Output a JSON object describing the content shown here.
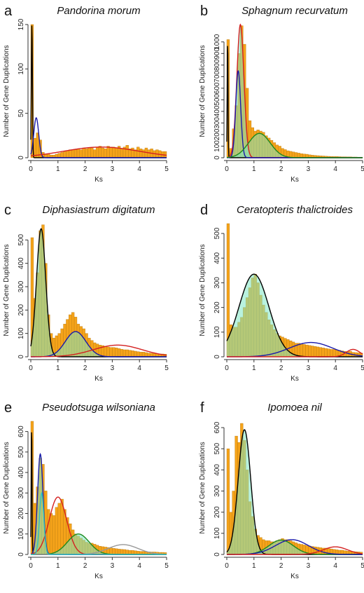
{
  "chart_data": [
    {
      "panel": "a",
      "title": "Pandorina morum",
      "type": "bar",
      "xlabel": "Ks",
      "ylabel": "Number of Gene Duplications",
      "xlim": [
        0,
        5
      ],
      "ylim": [
        0,
        150
      ],
      "x_ticks": [
        0,
        1,
        2,
        3,
        4,
        5
      ],
      "y_ticks": [
        0,
        50,
        100,
        150
      ],
      "bin_width": 0.1,
      "values": [
        150,
        22,
        28,
        20,
        6,
        4,
        4,
        3,
        3,
        4,
        5,
        6,
        7,
        8,
        9,
        9,
        9,
        10,
        9,
        11,
        10,
        11,
        11,
        9,
        12,
        13,
        11,
        10,
        13,
        12,
        12,
        11,
        13,
        10,
        12,
        14,
        10,
        11,
        9,
        12,
        10,
        9,
        11,
        9,
        10,
        8,
        9,
        8,
        7,
        7
      ],
      "curves": [
        {
          "color": "#000000",
          "mu": 0.04,
          "sigma": 0.02,
          "amp": 150
        },
        {
          "color": "#1a1aaa",
          "mu": 0.2,
          "sigma": 0.09,
          "amp": 45
        },
        {
          "color": "#d42020",
          "mu": 2.6,
          "sigma": 1.4,
          "amp": 12
        }
      ],
      "fills": []
    },
    {
      "panel": "b",
      "title": "Sphagnum recurvatum",
      "type": "bar",
      "xlabel": "Ks",
      "ylabel": "Number of Gene Duplications",
      "xlim": [
        0,
        5
      ],
      "ylim": [
        0,
        1150
      ],
      "x_ticks": [
        0,
        1,
        2,
        3,
        4,
        5
      ],
      "y_ticks": [
        0,
        100,
        200,
        300,
        400,
        500,
        600,
        700,
        800,
        900,
        1000
      ],
      "bin_width": 0.1,
      "values": [
        1020,
        80,
        250,
        450,
        900,
        1140,
        980,
        600,
        320,
        260,
        230,
        240,
        230,
        220,
        190,
        170,
        150,
        130,
        110,
        100,
        80,
        70,
        60,
        55,
        50,
        45,
        40,
        35,
        32,
        30,
        25,
        22,
        20,
        18,
        16,
        15,
        13,
        12,
        11,
        10,
        10,
        9,
        8,
        8,
        7,
        7,
        6,
        6,
        5,
        5
      ],
      "curves": [
        {
          "color": "#000000",
          "mu": 0.03,
          "sigma": 0.015,
          "amp": 1020
        },
        {
          "color": "#d42020",
          "mu": 0.5,
          "sigma": 0.13,
          "amp": 1150
        },
        {
          "color": "#1a1aaa",
          "mu": 0.42,
          "sigma": 0.09,
          "amp": 750
        },
        {
          "color": "#1e8a1e",
          "mu": 1.2,
          "sigma": 0.4,
          "amp": 210
        }
      ],
      "fills": [
        {
          "color": "#7fe8c4",
          "mu": 0.5,
          "sigma": 0.13,
          "amp": 1150
        },
        {
          "color": "#7fe8c4",
          "mu": 1.2,
          "sigma": 0.4,
          "amp": 210
        }
      ]
    },
    {
      "panel": "c",
      "title": "Diphasiastrum digitatum",
      "type": "bar",
      "xlabel": "Ks",
      "ylabel": "Number of Gene Duplications",
      "xlim": [
        0,
        5
      ],
      "ylim": [
        0,
        570
      ],
      "x_ticks": [
        0,
        1,
        2,
        3,
        4,
        5
      ],
      "y_ticks": [
        0,
        100,
        200,
        300,
        400,
        500
      ],
      "bin_width": 0.1,
      "values": [
        510,
        250,
        360,
        540,
        565,
        400,
        180,
        100,
        80,
        90,
        100,
        120,
        140,
        160,
        180,
        190,
        170,
        140,
        130,
        120,
        100,
        80,
        70,
        60,
        55,
        50,
        48,
        45,
        42,
        40,
        40,
        38,
        35,
        32,
        30,
        30,
        28,
        26,
        24,
        22,
        20,
        20,
        18,
        16,
        15,
        14,
        13,
        12,
        12,
        11
      ],
      "curves": [
        {
          "color": "#000000",
          "mu": 0.38,
          "sigma": 0.17,
          "amp": 548
        },
        {
          "color": "#1a1aaa",
          "mu": 1.65,
          "sigma": 0.38,
          "amp": 108
        },
        {
          "color": "#d42020",
          "mu": 3.2,
          "sigma": 0.9,
          "amp": 50
        }
      ],
      "fills": [
        {
          "color": "#7fe8c4",
          "mu": 0.38,
          "sigma": 0.17,
          "amp": 548
        },
        {
          "color": "#7fe8c4",
          "mu": 1.65,
          "sigma": 0.38,
          "amp": 108
        }
      ]
    },
    {
      "panel": "d",
      "title": "Ceratopteris thalictroides",
      "type": "bar",
      "xlabel": "Ks",
      "ylabel": "Number of Gene Duplications",
      "xlim": [
        0,
        5
      ],
      "ylim": [
        0,
        540
      ],
      "x_ticks": [
        0,
        1,
        2,
        3,
        4,
        5
      ],
      "y_ticks": [
        0,
        100,
        200,
        300,
        400,
        500
      ],
      "bin_width": 0.1,
      "values": [
        540,
        130,
        120,
        120,
        140,
        160,
        200,
        240,
        280,
        320,
        335,
        300,
        250,
        210,
        180,
        150,
        130,
        110,
        95,
        85,
        80,
        75,
        70,
        65,
        60,
        55,
        55,
        52,
        50,
        48,
        46,
        44,
        42,
        40,
        38,
        36,
        34,
        32,
        30,
        30,
        28,
        26,
        24,
        22,
        20,
        22,
        18,
        17,
        16,
        15
      ],
      "curves": [
        {
          "color": "#000000",
          "mu": 1.0,
          "sigma": 0.55,
          "amp": 335
        },
        {
          "color": "#1a1aaa",
          "mu": 3.1,
          "sigma": 0.8,
          "amp": 58
        },
        {
          "color": "#d42020",
          "mu": 4.65,
          "sigma": 0.25,
          "amp": 30
        }
      ],
      "fills": [
        {
          "color": "#7fe8c4",
          "mu": 1.0,
          "sigma": 0.55,
          "amp": 335
        }
      ]
    },
    {
      "panel": "e",
      "title": "Pseudotsuga wilsoniana",
      "type": "bar",
      "xlabel": "Ks",
      "ylabel": "Number of Gene Duplications",
      "xlim": [
        0,
        5
      ],
      "ylim": [
        0,
        650
      ],
      "x_ticks": [
        0,
        1,
        2,
        3,
        4,
        5
      ],
      "y_ticks": [
        0,
        100,
        200,
        300,
        400,
        500,
        600
      ],
      "bin_width": 0.1,
      "values": [
        650,
        250,
        330,
        470,
        440,
        310,
        220,
        200,
        190,
        230,
        250,
        270,
        220,
        180,
        150,
        120,
        100,
        90,
        80,
        70,
        60,
        55,
        55,
        50,
        45,
        40,
        38,
        36,
        34,
        32,
        30,
        28,
        26,
        25,
        24,
        22,
        20,
        20,
        18,
        16,
        15,
        15,
        14,
        13,
        12,
        12,
        11,
        10,
        10,
        9
      ],
      "curves": [
        {
          "color": "#000000",
          "mu": 0.03,
          "sigma": 0.015,
          "amp": 630
        },
        {
          "color": "#1a1aaa",
          "mu": 0.35,
          "sigma": 0.1,
          "amp": 490
        },
        {
          "color": "#d42020",
          "mu": 1.0,
          "sigma": 0.32,
          "amp": 280
        },
        {
          "color": "#1e8a1e",
          "mu": 1.75,
          "sigma": 0.4,
          "amp": 100
        },
        {
          "color": "#999999",
          "mu": 3.4,
          "sigma": 0.55,
          "amp": 48
        },
        {
          "color": "#30c0c0",
          "mu": 0.4,
          "sigma": 0.08,
          "amp": 300
        }
      ],
      "fills": [
        {
          "color": "#7fe8c4",
          "mu": 0.35,
          "sigma": 0.1,
          "amp": 490
        },
        {
          "color": "#7fe8c4",
          "mu": 1.75,
          "sigma": 0.4,
          "amp": 100
        }
      ]
    },
    {
      "panel": "f",
      "title": "Ipomoea nil",
      "type": "bar",
      "xlabel": "Ks",
      "ylabel": "Number of Gene Duplications",
      "xlim": [
        0,
        5
      ],
      "ylim": [
        0,
        630
      ],
      "x_ticks": [
        0,
        1,
        2,
        3,
        4,
        5
      ],
      "y_ticks": [
        0,
        100,
        200,
        300,
        400,
        500,
        600
      ],
      "bin_width": 0.1,
      "values": [
        500,
        200,
        300,
        560,
        530,
        620,
        540,
        400,
        250,
        180,
        120,
        90,
        80,
        70,
        65,
        65,
        60,
        60,
        65,
        70,
        75,
        70,
        70,
        65,
        60,
        55,
        50,
        48,
        45,
        42,
        40,
        38,
        36,
        34,
        32,
        30,
        30,
        28,
        26,
        24,
        22,
        20,
        20,
        18,
        16,
        15,
        14,
        13,
        12,
        11
      ],
      "curves": [
        {
          "color": "#000000",
          "mu": 0.65,
          "sigma": 0.23,
          "amp": 590
        },
        {
          "color": "#1e8a1e",
          "mu": 2.0,
          "sigma": 0.45,
          "amp": 68
        },
        {
          "color": "#1a1aaa",
          "mu": 2.4,
          "sigma": 0.6,
          "amp": 70
        },
        {
          "color": "#d42020",
          "mu": 4.0,
          "sigma": 0.45,
          "amp": 36
        }
      ],
      "fills": [
        {
          "color": "#7fe8c4",
          "mu": 0.65,
          "sigma": 0.23,
          "amp": 590
        },
        {
          "color": "#7fe8c4",
          "mu": 2.0,
          "sigma": 0.45,
          "amp": 68
        }
      ]
    }
  ],
  "colors": {
    "bar_fill": "#f5a31a",
    "bar_stroke": "#b87a10",
    "overlap_green": "#6ab04c"
  }
}
